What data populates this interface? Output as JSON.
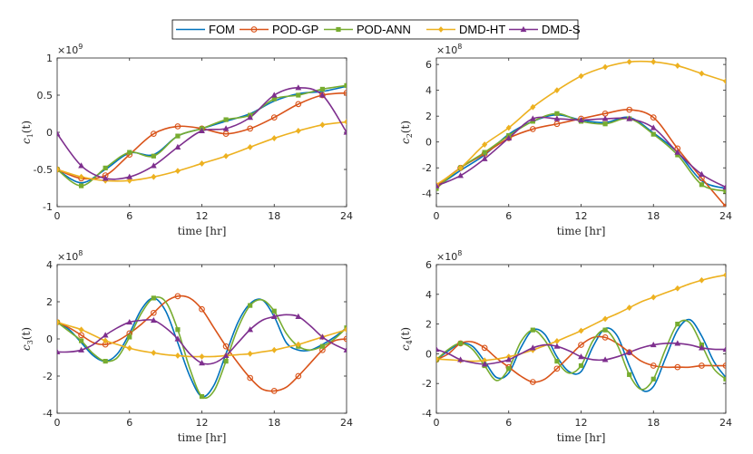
{
  "legend": {
    "items": [
      {
        "label": "FOM",
        "color": "#0072BD",
        "marker": "none"
      },
      {
        "label": "POD-GP",
        "color": "#D95319",
        "marker": "circle"
      },
      {
        "label": "POD-ANN",
        "color": "#77AC30",
        "marker": "square"
      },
      {
        "label": "DMD-HT",
        "color": "#EDB120",
        "marker": "diamond"
      },
      {
        "label": "DMD-S",
        "color": "#7E2F8E",
        "marker": "triangle"
      }
    ]
  },
  "chart_data": [
    {
      "type": "line",
      "ylabel": "c_1(t)",
      "ylabel_main": "c",
      "ylabel_sub": "1",
      "ylabel_suffix": "(t)",
      "xlabel": "time [hr]",
      "exponent_base": "×10",
      "exponent_power": "9",
      "xlim": [
        0,
        24
      ],
      "ylim": [
        -1,
        1
      ],
      "xticks": [
        "0",
        "6",
        "12",
        "18",
        "24"
      ],
      "yticks": [
        "-1",
        "-0.5",
        "0",
        "0.5",
        "1"
      ],
      "ytick_values": [
        -1,
        -0.5,
        0,
        0.5,
        1
      ],
      "x": [
        0,
        2,
        4,
        6,
        8,
        10,
        12,
        14,
        16,
        18,
        20,
        22,
        24
      ],
      "series": [
        {
          "name": "FOM",
          "values": [
            -0.5,
            -0.68,
            -0.5,
            -0.28,
            -0.3,
            -0.05,
            0.05,
            0.15,
            0.25,
            0.42,
            0.52,
            0.55,
            0.62
          ]
        },
        {
          "name": "POD-GP",
          "values": [
            -0.5,
            -0.62,
            -0.58,
            -0.3,
            -0.02,
            0.08,
            0.05,
            -0.02,
            0.05,
            0.2,
            0.38,
            0.5,
            0.53
          ]
        },
        {
          "name": "POD-ANN",
          "values": [
            -0.5,
            -0.72,
            -0.48,
            -0.27,
            -0.32,
            -0.05,
            0.05,
            0.17,
            0.23,
            0.45,
            0.5,
            0.58,
            0.63
          ]
        },
        {
          "name": "DMD-HT",
          "values": [
            -0.5,
            -0.6,
            -0.65,
            -0.65,
            -0.6,
            -0.52,
            -0.42,
            -0.32,
            -0.2,
            -0.08,
            0.02,
            0.1,
            0.14
          ]
        },
        {
          "name": "DMD-S",
          "values": [
            -0.02,
            -0.45,
            -0.62,
            -0.6,
            -0.45,
            -0.2,
            0.02,
            0.05,
            0.2,
            0.5,
            0.6,
            0.5,
            0.0
          ]
        }
      ]
    },
    {
      "type": "line",
      "ylabel": "c_2(t)",
      "ylabel_main": "c",
      "ylabel_sub": "2",
      "ylabel_suffix": "(t)",
      "xlabel": "time [hr]",
      "exponent_base": "×10",
      "exponent_power": "8",
      "xlim": [
        0,
        24
      ],
      "ylim": [
        -5,
        6.5
      ],
      "xticks": [
        "0",
        "6",
        "12",
        "18",
        "24"
      ],
      "yticks": [
        "-4",
        "-2",
        "0",
        "2",
        "4",
        "6"
      ],
      "ytick_values": [
        -4,
        -2,
        0,
        2,
        4,
        6
      ],
      "x": [
        0,
        2,
        4,
        6,
        8,
        10,
        12,
        14,
        16,
        18,
        20,
        22,
        24
      ],
      "series": [
        {
          "name": "FOM",
          "values": [
            -3.5,
            -2.2,
            -1.0,
            0.6,
            1.6,
            2.1,
            1.7,
            1.5,
            1.9,
            0.7,
            -0.8,
            -3.0,
            -3.6
          ]
        },
        {
          "name": "POD-GP",
          "values": [
            -3.4,
            -2.0,
            -0.9,
            0.3,
            1.0,
            1.4,
            1.8,
            2.2,
            2.5,
            1.9,
            -0.5,
            -2.8,
            -5.0
          ]
        },
        {
          "name": "POD-ANN",
          "values": [
            -3.6,
            -2.0,
            -0.8,
            0.5,
            1.6,
            2.2,
            1.6,
            1.4,
            1.8,
            0.6,
            -1.0,
            -3.3,
            -3.8
          ]
        },
        {
          "name": "DMD-HT",
          "values": [
            -3.3,
            -2.0,
            -0.2,
            1.1,
            2.7,
            4.0,
            5.1,
            5.8,
            6.2,
            6.2,
            5.9,
            5.3,
            4.7
          ]
        },
        {
          "name": "DMD-S",
          "values": [
            -3.4,
            -2.6,
            -1.3,
            0.3,
            1.8,
            1.8,
            1.7,
            1.8,
            1.8,
            1.1,
            -0.8,
            -2.5,
            -3.5
          ]
        }
      ]
    },
    {
      "type": "line",
      "ylabel": "c_3(t)",
      "ylabel_main": "c",
      "ylabel_sub": "3",
      "ylabel_suffix": "(t)",
      "xlabel": "time [hr]",
      "exponent_base": "×10",
      "exponent_power": "8",
      "xlim": [
        0,
        24
      ],
      "ylim": [
        -4,
        4
      ],
      "xticks": [
        "0",
        "6",
        "12",
        "18",
        "24"
      ],
      "yticks": [
        "-4",
        "-2",
        "0",
        "2",
        "4"
      ],
      "ytick_values": [
        -4,
        -2,
        0,
        2,
        4
      ],
      "x": [
        0,
        1,
        2,
        3,
        4,
        5,
        6,
        7,
        8,
        9,
        10,
        11,
        12,
        13,
        14,
        15,
        16,
        17,
        18,
        19,
        20,
        21,
        22,
        23,
        24
      ],
      "series": [
        {
          "name": "FOM",
          "values": [
            0.9,
            0.5,
            -0.2,
            -0.9,
            -1.2,
            -0.8,
            0.3,
            1.6,
            2.2,
            1.5,
            -0.2,
            -2.0,
            -3.1,
            -2.5,
            -0.8,
            0.9,
            1.9,
            2.1,
            1.2,
            -0.2,
            -0.6,
            -0.6,
            -0.3,
            0.1,
            0.6
          ]
        },
        {
          "name": "POD-GP",
          "values": [
            0.9,
            0.6,
            0.2,
            -0.2,
            -0.3,
            -0.1,
            0.3,
            0.8,
            1.4,
            2.0,
            2.3,
            2.2,
            1.6,
            0.6,
            -0.4,
            -1.3,
            -2.1,
            -2.7,
            -2.8,
            -2.6,
            -2.0,
            -1.3,
            -0.6,
            -0.1,
            0.0
          ]
        },
        {
          "name": "POD-ANN",
          "values": [
            0.9,
            0.4,
            -0.1,
            -0.8,
            -1.2,
            -1.0,
            0.1,
            1.4,
            2.2,
            2.0,
            0.5,
            -1.6,
            -3.1,
            -2.8,
            -1.2,
            0.6,
            1.8,
            2.1,
            1.5,
            0.3,
            -0.4,
            -0.6,
            -0.4,
            0.0,
            0.6
          ]
        },
        {
          "name": "DMD-HT",
          "values": [
            0.9,
            0.7,
            0.5,
            0.2,
            -0.1,
            -0.3,
            -0.5,
            -0.65,
            -0.75,
            -0.85,
            -0.9,
            -0.95,
            -0.95,
            -0.95,
            -0.9,
            -0.85,
            -0.8,
            -0.7,
            -0.6,
            -0.45,
            -0.3,
            -0.1,
            0.1,
            0.3,
            0.5
          ]
        },
        {
          "name": "DMD-S",
          "values": [
            -0.7,
            -0.7,
            -0.6,
            -0.3,
            0.2,
            0.6,
            0.9,
            1.0,
            1.0,
            0.6,
            0.0,
            -0.8,
            -1.3,
            -1.3,
            -0.9,
            -0.2,
            0.5,
            1.0,
            1.2,
            1.3,
            1.2,
            0.7,
            0.1,
            -0.3,
            -0.6
          ]
        }
      ]
    },
    {
      "type": "line",
      "ylabel": "c_4(t)",
      "ylabel_main": "c",
      "ylabel_sub": "4",
      "ylabel_suffix": "(t)",
      "xlabel": "time [hr]",
      "exponent_base": "×10",
      "exponent_power": "8",
      "xlim": [
        0,
        24
      ],
      "ylim": [
        -4,
        6
      ],
      "xticks": [
        "0",
        "6",
        "12",
        "18",
        "24"
      ],
      "yticks": [
        "-4",
        "-2",
        "0",
        "2",
        "4",
        "6"
      ],
      "ytick_values": [
        -4,
        -2,
        0,
        2,
        4,
        6
      ],
      "x": [
        0,
        1,
        2,
        3,
        4,
        5,
        6,
        7,
        8,
        9,
        10,
        11,
        12,
        13,
        14,
        15,
        16,
        17,
        18,
        19,
        20,
        21,
        22,
        23,
        24
      ],
      "series": [
        {
          "name": "FOM",
          "values": [
            -0.4,
            0.2,
            0.7,
            0.5,
            -0.5,
            -1.6,
            -1.3,
            0.4,
            1.6,
            1.3,
            -0.2,
            -1.2,
            -1.2,
            0.5,
            1.7,
            1.2,
            -0.8,
            -2.4,
            -2.2,
            -0.3,
            1.6,
            2.3,
            1.2,
            -0.5,
            -1.6
          ]
        },
        {
          "name": "POD-GP",
          "values": [
            -0.4,
            0.0,
            0.7,
            0.8,
            0.4,
            -0.3,
            -0.9,
            -1.5,
            -1.9,
            -1.7,
            -1.0,
            -0.2,
            0.6,
            1.1,
            1.1,
            0.7,
            0.1,
            -0.5,
            -0.8,
            -0.9,
            -0.9,
            -0.9,
            -0.8,
            -0.8,
            -0.8
          ]
        },
        {
          "name": "POD-ANN",
          "values": [
            -0.4,
            0.3,
            0.7,
            0.3,
            -0.8,
            -1.8,
            -1.0,
            0.8,
            1.6,
            0.9,
            -0.5,
            -1.3,
            -0.8,
            0.9,
            1.6,
            0.6,
            -1.4,
            -2.4,
            -1.7,
            0.3,
            2.0,
            2.1,
            0.6,
            -1.0,
            -1.7
          ]
        },
        {
          "name": "DMD-HT",
          "values": [
            -0.35,
            -0.4,
            -0.45,
            -0.5,
            -0.45,
            -0.35,
            -0.2,
            0.0,
            0.25,
            0.55,
            0.85,
            1.2,
            1.55,
            1.95,
            2.35,
            2.7,
            3.1,
            3.5,
            3.8,
            4.1,
            4.4,
            4.7,
            4.95,
            5.15,
            5.3
          ]
        },
        {
          "name": "DMD-S",
          "values": [
            0.3,
            0.0,
            -0.4,
            -0.6,
            -0.7,
            -0.6,
            -0.4,
            0.0,
            0.4,
            0.6,
            0.5,
            0.2,
            -0.2,
            -0.4,
            -0.4,
            -0.2,
            0.1,
            0.4,
            0.6,
            0.7,
            0.7,
            0.6,
            0.4,
            0.3,
            0.3
          ]
        }
      ]
    }
  ]
}
